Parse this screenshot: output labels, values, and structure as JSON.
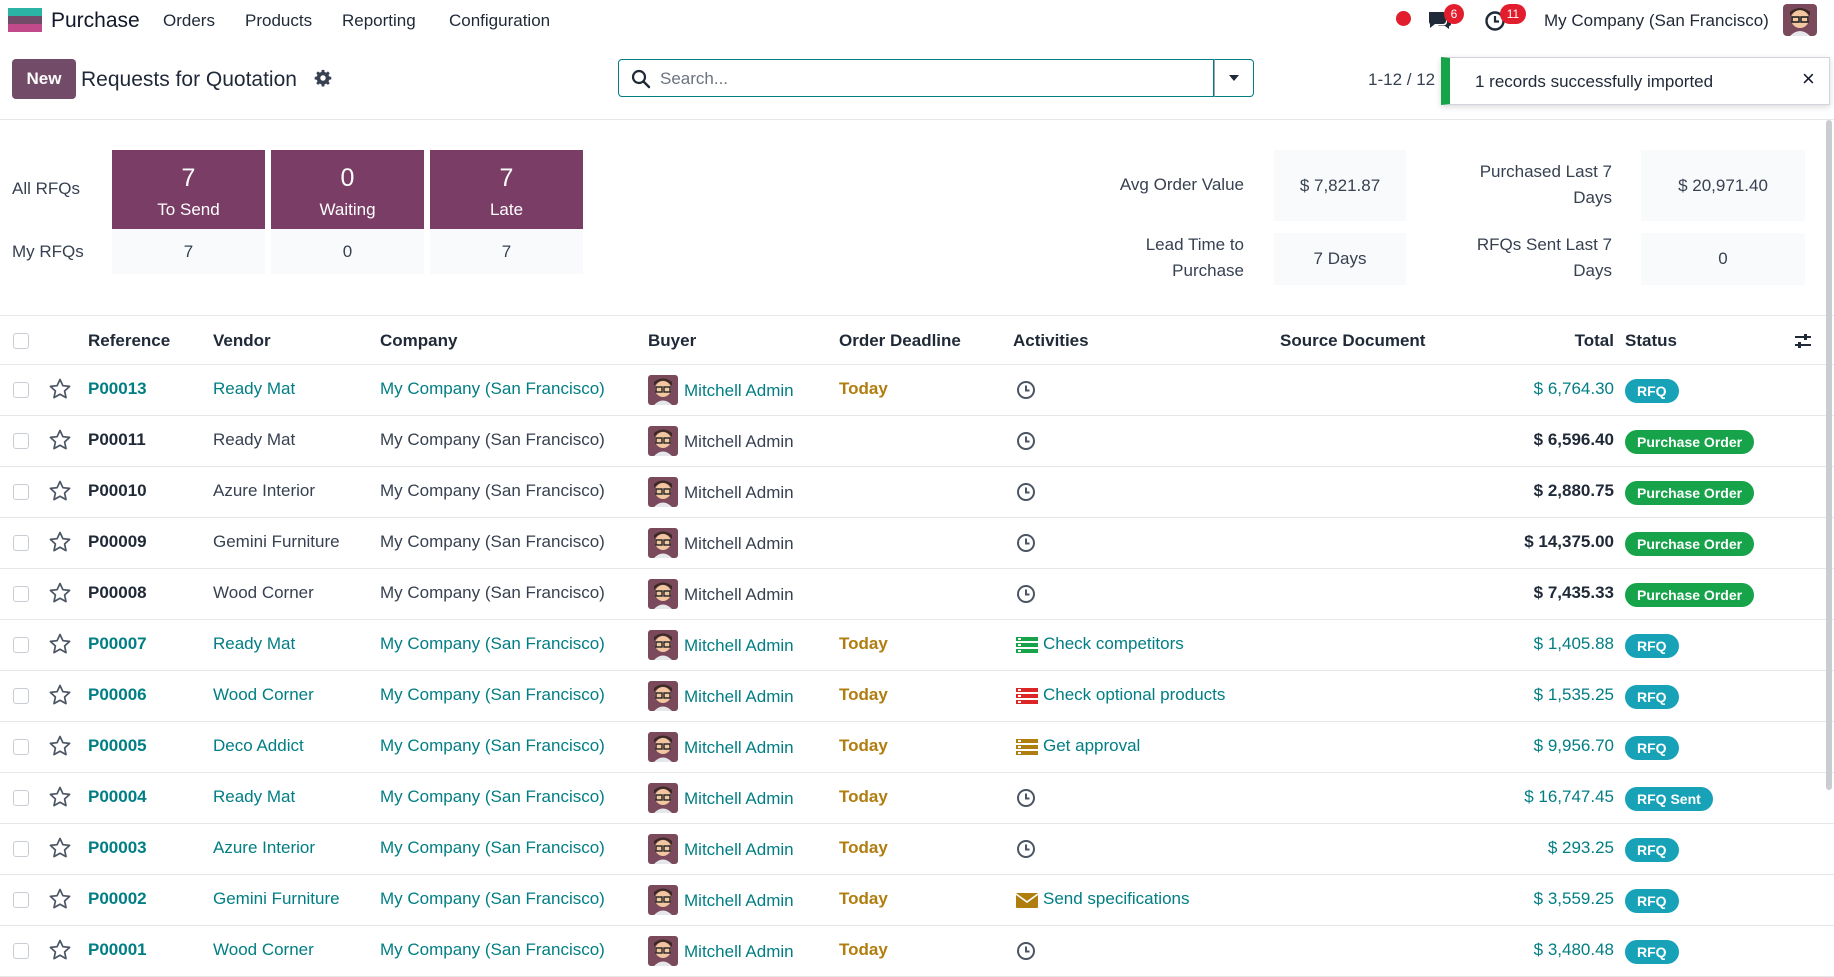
{
  "navbar": {
    "app_name": "Purchase",
    "menu": [
      "Orders",
      "Products",
      "Reporting",
      "Configuration"
    ],
    "messages_count": "6",
    "activities_count": "11",
    "company": "My Company (San Francisco)"
  },
  "control": {
    "new_label": "New",
    "title": "Requests for Quotation",
    "search_placeholder": "Search...",
    "pager": "1-12 / 12",
    "toast": "1 records successfully imported",
    "toast_close": "×"
  },
  "dashboard": {
    "all_label": "All RFQs",
    "my_label": "My RFQs",
    "tiles": [
      {
        "count": "7",
        "label": "To Send",
        "mine": "7"
      },
      {
        "count": "0",
        "label": "Waiting",
        "mine": "0"
      },
      {
        "count": "7",
        "label": "Late",
        "mine": "7"
      }
    ],
    "kpis": {
      "avg_label": "Avg Order Value",
      "avg_value": "$ 7,821.87",
      "lead_label_1": "Lead Time to",
      "lead_label_2": "Purchase",
      "lead_value": "7 Days",
      "purchased_label_1": "Purchased Last 7",
      "purchased_label_2": "Days",
      "purchased_value": "$ 20,971.40",
      "sent_label_1": "RFQs Sent Last 7",
      "sent_label_2": "Days",
      "sent_value": "0"
    }
  },
  "columns": {
    "reference": "Reference",
    "vendor": "Vendor",
    "company": "Company",
    "buyer": "Buyer",
    "deadline": "Order Deadline",
    "activities": "Activities",
    "source": "Source Document",
    "total": "Total",
    "status": "Status"
  },
  "colors": {
    "brand": "#714B67",
    "tile": "#7a3e66",
    "link": "#017e84",
    "deadline": "#b07d0f",
    "tag_rfq": "#17a2b8",
    "tag_po": "#16a34a",
    "toast_border": "#16a34a"
  },
  "rows": [
    {
      "ref": "P00013",
      "vendor": "Ready Mat",
      "company": "My Company (San Francisco)",
      "buyer": "Mitchell Admin",
      "deadline": "Today",
      "activity": "",
      "activity_icon": "clock-icon",
      "total": "$ 6,764.30",
      "status": "RFQ",
      "status_kind": "rfq",
      "highlight": true
    },
    {
      "ref": "P00011",
      "vendor": "Ready Mat",
      "company": "My Company (San Francisco)",
      "buyer": "Mitchell Admin",
      "deadline": "",
      "activity": "",
      "activity_icon": "clock-icon",
      "total": "$ 6,596.40",
      "status": "Purchase Order",
      "status_kind": "po",
      "highlight": false
    },
    {
      "ref": "P00010",
      "vendor": "Azure Interior",
      "company": "My Company (San Francisco)",
      "buyer": "Mitchell Admin",
      "deadline": "",
      "activity": "",
      "activity_icon": "clock-icon",
      "total": "$ 2,880.75",
      "status": "Purchase Order",
      "status_kind": "po",
      "highlight": false
    },
    {
      "ref": "P00009",
      "vendor": "Gemini Furniture",
      "company": "My Company (San Francisco)",
      "buyer": "Mitchell Admin",
      "deadline": "",
      "activity": "",
      "activity_icon": "clock-icon",
      "total": "$ 14,375.00",
      "status": "Purchase Order",
      "status_kind": "po",
      "highlight": false
    },
    {
      "ref": "P00008",
      "vendor": "Wood Corner",
      "company": "My Company (San Francisco)",
      "buyer": "Mitchell Admin",
      "deadline": "",
      "activity": "",
      "activity_icon": "clock-icon",
      "total": "$ 7,435.33",
      "status": "Purchase Order",
      "status_kind": "po",
      "highlight": false
    },
    {
      "ref": "P00007",
      "vendor": "Ready Mat",
      "company": "My Company (San Francisco)",
      "buyer": "Mitchell Admin",
      "deadline": "Today",
      "activity": "Check competitors",
      "activity_icon": "list-green-icon",
      "total": "$ 1,405.88",
      "status": "RFQ",
      "status_kind": "rfq",
      "highlight": true
    },
    {
      "ref": "P00006",
      "vendor": "Wood Corner",
      "company": "My Company (San Francisco)",
      "buyer": "Mitchell Admin",
      "deadline": "Today",
      "activity": "Check optional products",
      "activity_icon": "list-red-icon",
      "total": "$ 1,535.25",
      "status": "RFQ",
      "status_kind": "rfq",
      "highlight": true
    },
    {
      "ref": "P00005",
      "vendor": "Deco Addict",
      "company": "My Company (San Francisco)",
      "buyer": "Mitchell Admin",
      "deadline": "Today",
      "activity": "Get approval",
      "activity_icon": "list-orange-icon",
      "total": "$ 9,956.70",
      "status": "RFQ",
      "status_kind": "rfq",
      "highlight": true
    },
    {
      "ref": "P00004",
      "vendor": "Ready Mat",
      "company": "My Company (San Francisco)",
      "buyer": "Mitchell Admin",
      "deadline": "Today",
      "activity": "",
      "activity_icon": "clock-icon",
      "total": "$ 16,747.45",
      "status": "RFQ Sent",
      "status_kind": "rfq",
      "highlight": true
    },
    {
      "ref": "P00003",
      "vendor": "Azure Interior",
      "company": "My Company (San Francisco)",
      "buyer": "Mitchell Admin",
      "deadline": "Today",
      "activity": "",
      "activity_icon": "clock-icon",
      "total": "$ 293.25",
      "status": "RFQ",
      "status_kind": "rfq",
      "highlight": true
    },
    {
      "ref": "P00002",
      "vendor": "Gemini Furniture",
      "company": "My Company (San Francisco)",
      "buyer": "Mitchell Admin",
      "deadline": "Today",
      "activity": "Send specifications",
      "activity_icon": "envelope-icon",
      "total": "$ 3,559.25",
      "status": "RFQ",
      "status_kind": "rfq",
      "highlight": true
    },
    {
      "ref": "P00001",
      "vendor": "Wood Corner",
      "company": "My Company (San Francisco)",
      "buyer": "Mitchell Admin",
      "deadline": "Today",
      "activity": "",
      "activity_icon": "clock-icon",
      "total": "$ 3,480.48",
      "status": "RFQ",
      "status_kind": "rfq",
      "highlight": true
    }
  ]
}
